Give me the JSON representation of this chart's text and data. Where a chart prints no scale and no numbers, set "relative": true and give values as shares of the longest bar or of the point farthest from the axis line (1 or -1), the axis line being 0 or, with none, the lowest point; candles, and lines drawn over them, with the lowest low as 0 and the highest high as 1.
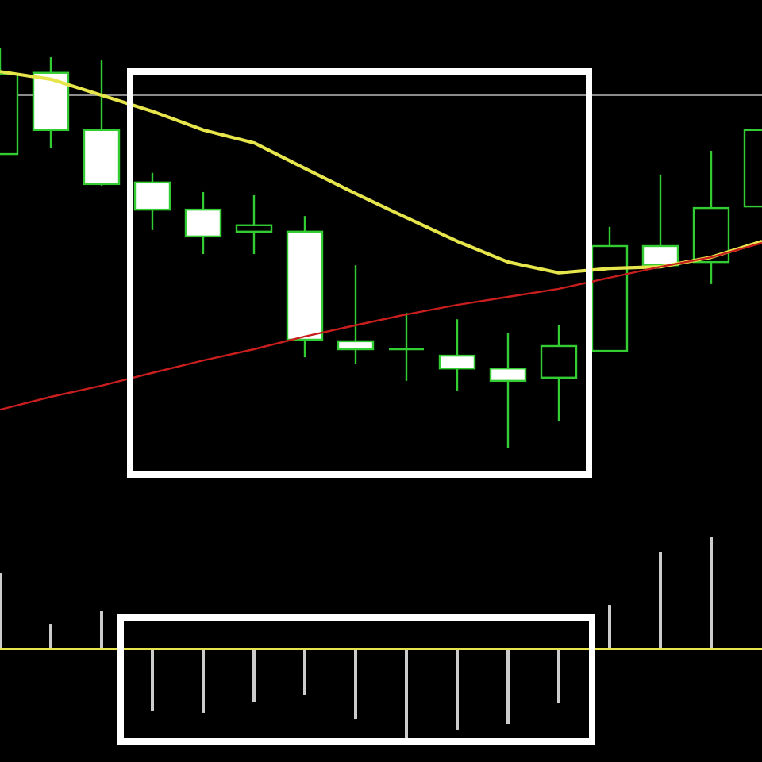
{
  "chart_data": [
    {
      "type": "candlestick",
      "relative": true,
      "color": "#33cc33",
      "categories": [
        null,
        null,
        null,
        null,
        null,
        null,
        null,
        null,
        null,
        null,
        null,
        null,
        null,
        null,
        null,
        null
      ],
      "ohlc": [
        [
          0.734,
          1,
          0.734,
          0.933
        ],
        [
          0.937,
          0.976,
          0.75,
          0.794
        ],
        [
          0.794,
          0.968,
          0.655,
          0.659
        ],
        [
          0.663,
          0.687,
          0.544,
          0.595
        ],
        [
          0.595,
          0.639,
          0.484,
          0.528
        ],
        [
          0.54,
          0.631,
          0.484,
          0.556
        ],
        [
          0.54,
          0.579,
          0.226,
          0.27
        ],
        [
          0.266,
          0.456,
          0.21,
          0.246
        ],
        [
          0.246,
          0.337,
          0.167,
          0.246
        ],
        [
          0.23,
          0.321,
          0.143,
          0.198
        ],
        [
          0.198,
          0.286,
          0,
          0.167
        ],
        [
          0.175,
          0.306,
          0.067,
          0.254
        ],
        [
          0.242,
          0.552,
          0.242,
          0.504
        ],
        [
          0.504,
          0.683,
          0.456,
          0.456
        ],
        [
          0.464,
          0.742,
          0.409,
          0.599
        ],
        [
          0.603,
          0.794,
          0.603,
          0.794
        ]
      ],
      "series": [
        {
          "type": "line",
          "color": "#e6e64c",
          "values": [
            0.94,
            0.921,
            0.881,
            0.841,
            0.794,
            0.762,
            0.698,
            0.635,
            0.575,
            0.516,
            0.464,
            0.437,
            0.448,
            0.452,
            0.476,
            0.516
          ]
        },
        {
          "type": "line",
          "color": "#c81e1e",
          "values": [
            0.095,
            0.127,
            0.155,
            0.187,
            0.218,
            0.246,
            0.278,
            0.306,
            0.333,
            0.357,
            0.377,
            0.397,
            0.425,
            0.452,
            0.476,
            0.512
          ]
        }
      ],
      "ref_lines": [
        {
          "axis": "y",
          "value": 0.881,
          "color": "#8c8c8c"
        }
      ]
    },
    {
      "type": "bar",
      "relative": true,
      "color": "#cccccc",
      "categories": [
        null,
        null,
        null,
        null,
        null,
        null,
        null,
        null,
        null,
        null,
        null,
        null,
        null,
        null,
        null,
        null
      ],
      "values": [
        0.676,
        0.225,
        0.338,
        -0.549,
        -0.563,
        -0.465,
        -0.408,
        -0.62,
        -0.803,
        -0.718,
        -0.662,
        -0.479,
        0.394,
        0.859,
        1,
        null
      ],
      "ref_lines": [
        {
          "axis": "y",
          "value": 0,
          "color": "#e6e64c"
        }
      ]
    }
  ]
}
